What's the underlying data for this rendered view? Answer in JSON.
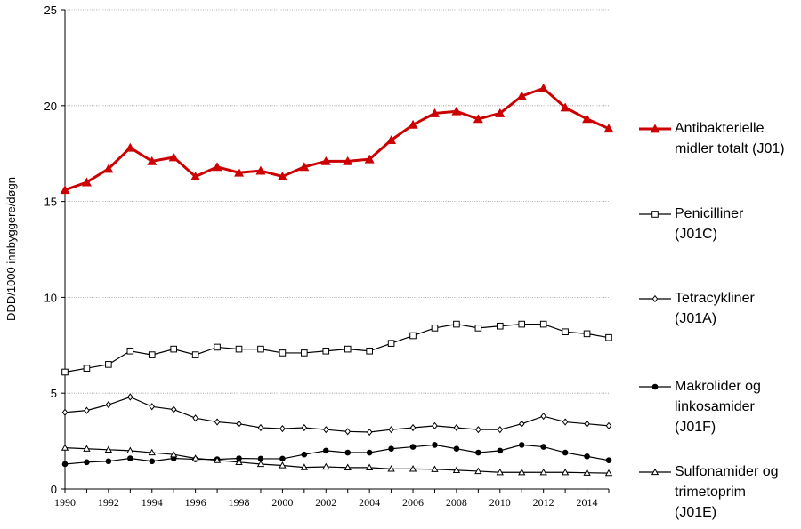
{
  "chart_data": {
    "type": "line",
    "title": "",
    "xlabel": "",
    "ylabel": "DDD/1000 innbyggere/døgn",
    "ylim": [
      0,
      25
    ],
    "yticks": [
      0,
      5,
      10,
      15,
      20,
      25
    ],
    "xlim": [
      1990,
      2015
    ],
    "xticks": [
      1990,
      1992,
      1994,
      1996,
      1998,
      2000,
      2002,
      2004,
      2006,
      2008,
      2010,
      2012,
      2014
    ],
    "grid": "horizontal dotted",
    "legend_position": "right",
    "x": [
      1990,
      1991,
      1992,
      1993,
      1994,
      1995,
      1996,
      1997,
      1998,
      1999,
      2000,
      2001,
      2002,
      2003,
      2004,
      2005,
      2006,
      2007,
      2008,
      2009,
      2010,
      2011,
      2012,
      2013,
      2014,
      2015
    ],
    "series": [
      {
        "name": "Antibakterielle midler totalt (J01)",
        "legend_lines": [
          "Antibakterielle",
          "midler totalt (J01)"
        ],
        "color": "#cc0000",
        "marker": "filled-triangle",
        "values": [
          15.6,
          16.0,
          16.7,
          17.8,
          17.1,
          17.3,
          16.3,
          16.8,
          16.5,
          16.6,
          16.3,
          16.8,
          17.1,
          17.1,
          17.2,
          18.2,
          19.0,
          19.6,
          19.7,
          19.3,
          19.6,
          20.5,
          20.9,
          19.9,
          19.3,
          18.8
        ]
      },
      {
        "name": "Penicilliner (J01C)",
        "legend_lines": [
          "Penicilliner",
          "(J01C)"
        ],
        "color": "#000000",
        "marker": "open-square",
        "values": [
          6.1,
          6.3,
          6.5,
          7.2,
          7.0,
          7.3,
          7.0,
          7.4,
          7.3,
          7.3,
          7.1,
          7.1,
          7.2,
          7.3,
          7.2,
          7.6,
          8.0,
          8.4,
          8.6,
          8.4,
          8.5,
          8.6,
          8.6,
          8.2,
          8.1,
          7.9
        ]
      },
      {
        "name": "Tetracykliner (J01A)",
        "legend_lines": [
          "Tetracykliner",
          "(J01A)"
        ],
        "color": "#000000",
        "marker": "open-diamond",
        "values": [
          4.0,
          4.1,
          4.4,
          4.8,
          4.3,
          4.15,
          3.7,
          3.5,
          3.4,
          3.2,
          3.15,
          3.2,
          3.1,
          3.0,
          2.97,
          3.1,
          3.2,
          3.3,
          3.2,
          3.1,
          3.1,
          3.4,
          3.8,
          3.5,
          3.4,
          3.3
        ]
      },
      {
        "name": "Makrolider og linkosamider (J01F)",
        "legend_lines": [
          "Makrolider og",
          "linkosamider",
          "(J01F)"
        ],
        "color": "#000000",
        "marker": "filled-circle",
        "values": [
          1.3,
          1.4,
          1.45,
          1.6,
          1.45,
          1.6,
          1.55,
          1.55,
          1.6,
          1.58,
          1.58,
          1.8,
          2.0,
          1.9,
          1.9,
          2.1,
          2.2,
          2.3,
          2.1,
          1.9,
          2.0,
          2.3,
          2.2,
          1.9,
          1.7,
          1.5
        ]
      },
      {
        "name": "Sulfonamider og trimetoprim (J01E)",
        "legend_lines": [
          "Sulfonamider og",
          "trimetoprim",
          "(J01E)"
        ],
        "color": "#000000",
        "marker": "open-triangle",
        "values": [
          2.15,
          2.1,
          2.05,
          2.0,
          1.9,
          1.8,
          1.6,
          1.5,
          1.4,
          1.3,
          1.23,
          1.13,
          1.16,
          1.12,
          1.12,
          1.05,
          1.05,
          1.03,
          0.98,
          0.93,
          0.87,
          0.87,
          0.87,
          0.87,
          0.85,
          0.83
        ]
      }
    ]
  }
}
